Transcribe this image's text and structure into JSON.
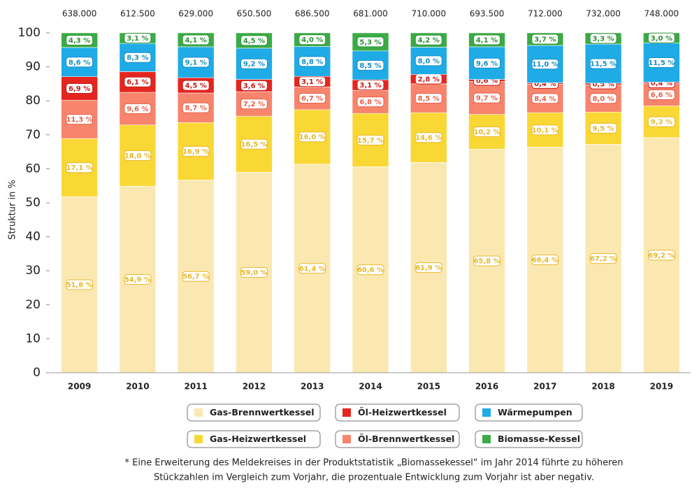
{
  "chart_data": {
    "type": "stacked-bar",
    "y_label": "Struktur in %",
    "categories": [
      "2009",
      "2010",
      "2011",
      "2012",
      "2013",
      "2014",
      "2015",
      "2016",
      "2017",
      "2018",
      "2019"
    ],
    "top_labels": [
      "638.000",
      "612.500",
      "629.000",
      "650.500",
      "686.500",
      "681.000",
      "710.000",
      "693.500",
      "712.000",
      "732.000",
      "748.000"
    ],
    "series": [
      {
        "name": "Gas-Brennwertkessel",
        "color": "#fbe8b1",
        "label_color": "#e8b828",
        "values": [
          51.8,
          54.9,
          56.7,
          59.0,
          61.4,
          60.6,
          61.9,
          65.8,
          66.4,
          67.2,
          69.2
        ],
        "value_labels": [
          "51,8 %",
          "54,9 %",
          "56,7 %",
          "59,0 %",
          "61,4 %",
          "60,6 %",
          "61,9 %",
          "65,8 %",
          "66,4 %",
          "67,2 %",
          "69,2 %"
        ]
      },
      {
        "name": "Gas-Heizwertkessel",
        "color": "#f9d835",
        "label_color": "#e8b828",
        "values": [
          17.1,
          18.0,
          16.9,
          16.5,
          16.0,
          15.7,
          14.6,
          10.2,
          10.1,
          9.5,
          9.3
        ],
        "value_labels": [
          "17,1 %",
          "18,0 %",
          "16,9 %",
          "16,5 %",
          "16,0 %",
          "15,7 %",
          "14,6 %",
          "10,2 %",
          "10,1 %",
          "9,5 %",
          "9,3 %"
        ]
      },
      {
        "name": "Öl-Brennwertkessel",
        "color": "#f7846c",
        "label_color": "#e8604a",
        "values": [
          11.3,
          9.6,
          8.7,
          7.2,
          6.7,
          6.8,
          8.5,
          9.7,
          8.4,
          8.0,
          6.6
        ],
        "value_labels": [
          "11,3 %",
          "9,6 %",
          "8,7 %",
          "7,2 %",
          "6,7 %",
          "6,8 %",
          "8,5 %",
          "9,7 %",
          "8,4 %",
          "8,0 %",
          "6,6 %"
        ]
      },
      {
        "name": "Öl-Heizwertkessel",
        "color": "#e4261f",
        "label_color": "#c81a14",
        "values": [
          6.9,
          6.1,
          4.5,
          3.6,
          3.1,
          3.1,
          2.8,
          0.6,
          0.4,
          0.5,
          0.4
        ],
        "value_labels": [
          "6,9 %",
          "6,1 %",
          "4,5 %",
          "3,6 %",
          "3,1 %",
          "3,1 %",
          "2,8 %",
          "0,6 %",
          "0,4 %",
          "0,5 %",
          "0,4 %"
        ]
      },
      {
        "name": "Wärmepumpen",
        "color": "#1fabe6",
        "label_color": "#1590c8",
        "values": [
          8.6,
          8.3,
          9.1,
          9.2,
          8.8,
          8.5,
          8.0,
          9.6,
          11.0,
          11.5,
          11.5
        ],
        "value_labels": [
          "8,6 %",
          "8,3 %",
          "9,1 %",
          "9,2 %",
          "8,8 %",
          "8,5 %",
          "8,0 %",
          "9,6 %",
          "11,0 %",
          "11,5 %",
          "11,5 %"
        ]
      },
      {
        "name": "Biomasse-Kessel",
        "color": "#3aab45",
        "label_color": "#2a9235",
        "values": [
          4.3,
          3.1,
          4.1,
          4.5,
          4.0,
          5.3,
          4.2,
          4.1,
          3.7,
          3.3,
          3.0
        ],
        "value_labels": [
          "4,3 %",
          "3,1 %",
          "4,1 %",
          "4,5 %",
          "4,0 %",
          "5,3 %",
          "4,2 %",
          "4,1 %",
          "3,7 %",
          "3,3 %",
          "3,0 %"
        ]
      }
    ],
    "ylim": [
      0,
      100
    ],
    "yticks": [
      0,
      10,
      20,
      30,
      40,
      50,
      60,
      70,
      80,
      90,
      100
    ],
    "grid": false,
    "footnote": [
      "* Eine Erweiterung des Meldekreises in der Produktstatistik „Biomassekessel“ im Jahr 2014 führte zu höheren",
      "Stückzahlen im Vergleich zum Vorjahr, die prozentuale Entwicklung zum Vorjahr ist aber negativ."
    ]
  }
}
